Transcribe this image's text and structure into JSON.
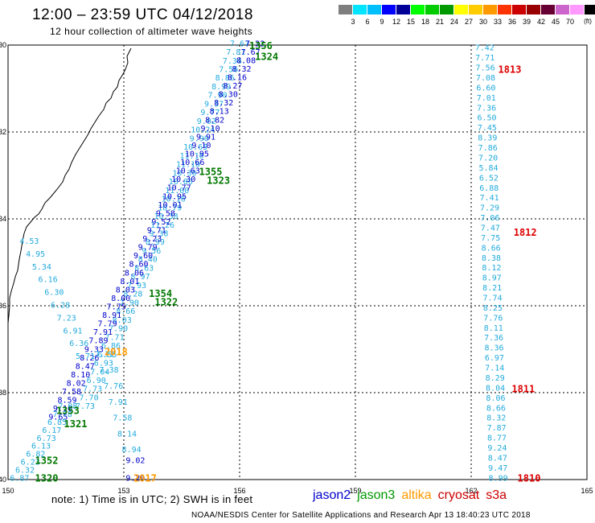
{
  "title": "12:00 – 23:59 UTC 04/12/2018",
  "subtitle": "12 hour collection of altimeter wave heights",
  "colorbar": {
    "unit": "(ft)",
    "colors": [
      "#7f7f7f",
      "#00e5ff",
      "#00bfff",
      "#0000ff",
      "#000099",
      "#00ff00",
      "#00cc00",
      "#009900",
      "#ffff00",
      "#ffcc00",
      "#ff9900",
      "#ff3300",
      "#cc0000",
      "#990000",
      "#660033",
      "#cc66cc",
      "#ff99ff",
      "#000000"
    ],
    "labels": [
      "3",
      "6",
      "9",
      "12",
      "15",
      "18",
      "21",
      "24",
      "27",
      "30",
      "33",
      "36",
      "39",
      "42",
      "45",
      "70"
    ]
  },
  "axes": {
    "lon_ticks": [
      "150",
      "153",
      "156",
      "159",
      "162",
      "165"
    ],
    "lat_ticks": [
      "30",
      "32",
      "34",
      "36",
      "38",
      "40"
    ]
  },
  "note": "note: 1) Time is in UTC; 2) SWH is in feet",
  "legend": [
    {
      "name": "jason2",
      "color": "#0000cc"
    },
    {
      "name": "jason3",
      "color": "#009900"
    },
    {
      "name": "altika",
      "color": "#ff9900"
    },
    {
      "name": "cryosat",
      "color": "#cc0000"
    },
    {
      "name": "s3a",
      "color": "#cc0000"
    }
  ],
  "credit": "NOAA/NESDIS Center for Satellite Applications and Research    Apr 13 18:40:23 UTC 2018",
  "colors": {
    "light": "#22aadd",
    "dark": "#0000cc",
    "green": "#007700",
    "orange": "#ff9900",
    "red": "#dd0000"
  },
  "times": [
    {
      "text": "1356",
      "lon": 156.55,
      "lat": 30.0,
      "c": "green"
    },
    {
      "text": "1324",
      "lon": 156.7,
      "lat": 30.25,
      "c": "green"
    },
    {
      "text": "1813",
      "lon": 163.0,
      "lat": 30.55,
      "c": "red"
    },
    {
      "text": "1355",
      "lon": 155.25,
      "lat": 32.9,
      "c": "green"
    },
    {
      "text": "1323",
      "lon": 155.45,
      "lat": 33.1,
      "c": "green"
    },
    {
      "text": "1812",
      "lon": 163.4,
      "lat": 34.3,
      "c": "red"
    },
    {
      "text": "1354",
      "lon": 153.95,
      "lat": 35.7,
      "c": "green"
    },
    {
      "text": "1322",
      "lon": 154.1,
      "lat": 35.9,
      "c": "green"
    },
    {
      "text": "2018",
      "lon": 152.8,
      "lat": 37.05,
      "c": "orange"
    },
    {
      "text": "1811",
      "lon": 163.35,
      "lat": 37.9,
      "c": "red"
    },
    {
      "text": "1353",
      "lon": 151.55,
      "lat": 38.4,
      "c": "green"
    },
    {
      "text": "1321",
      "lon": 151.75,
      "lat": 38.7,
      "c": "green"
    },
    {
      "text": "1352",
      "lon": 151.0,
      "lat": 39.55,
      "c": "green"
    },
    {
      "text": "1320",
      "lon": 151.0,
      "lat": 39.95,
      "c": "green"
    },
    {
      "text": "2017",
      "lon": 153.55,
      "lat": 39.95,
      "c": "orange"
    },
    {
      "text": "1810",
      "lon": 163.5,
      "lat": 39.95,
      "c": "red"
    }
  ],
  "tracks": [
    {
      "c": "light",
      "lon": [
        156.0,
        152.0
      ],
      "lat": [
        29.95,
        38.3
      ],
      "values": [
        "7.67",
        "7.81",
        "7.34",
        "7.56",
        "8.86",
        "8.99",
        "7.90",
        "9.37",
        "9.77",
        "9.02",
        "10.24",
        "9.90",
        "10.65",
        "11.10",
        "11.10",
        "10.30",
        "10.80",
        "11.00",
        "10.16",
        "10.79",
        "10.38",
        "11.26",
        "9.38",
        "8.99",
        "9.56",
        "8.40",
        "8.63",
        "8.97",
        "7.93",
        "8.28",
        "7.90",
        "8.66",
        "8.03",
        "7.90",
        "7.71",
        "6.86",
        "6.55",
        "6.93",
        "7.04",
        "6.90",
        "7.73",
        "7.70",
        "7.73"
      ]
    },
    {
      "c": "dark",
      "lon": [
        156.4,
        151.3
      ],
      "lat": [
        29.95,
        38.55
      ],
      "values": [
        "7.22",
        "7.67",
        "8.08",
        "8.32",
        "8.16",
        "8.27",
        "8.30",
        "8.32",
        "8.13",
        "8.82",
        "9.10",
        "9.91",
        "9.10",
        "10.95",
        "10.66",
        "10.63",
        "10.30",
        "10.77",
        "10.95",
        "10.01",
        "9.58",
        "9.52",
        "9.71",
        "9.23",
        "9.79",
        "9.60",
        "8.60",
        "8.06",
        "8.01",
        "8.03",
        "8.00",
        "7.75",
        "8.91",
        "7.79",
        "7.91",
        "7.89",
        "9.33",
        "8.26",
        "8.47",
        "8.10",
        "8.02",
        "7.58",
        "8.59",
        "9.10",
        "9.65"
      ]
    },
    {
      "c": "light",
      "lon": [
        151.55,
        150.3
      ],
      "lat": [
        38.3,
        39.95
      ],
      "values": [
        "7.08",
        "7.78",
        "6.85",
        "6.17",
        "6.73",
        "6.13",
        "6.82",
        "6.23",
        "6.32",
        "6.87"
      ]
    },
    {
      "c": "light",
      "lon": [
        150.55,
        152.0
      ],
      "lat": [
        34.5,
        37.15
      ],
      "values": [
        "4.53",
        "4.95",
        "5.34",
        "6.16",
        "6.30",
        "6.28",
        "7.23",
        "6.91",
        "6.36",
        "5.71"
      ]
    },
    {
      "c": "light",
      "lon": [
        152.5,
        153.2
      ],
      "lat": [
        37.1,
        39.3
      ],
      "values": [
        "7.11",
        "7.38",
        "7.76",
        "7.91",
        "7.58",
        "8.14",
        "8.94"
      ]
    },
    {
      "c": "dark",
      "lon": [
        153.3,
        153.3
      ],
      "lat": [
        39.55,
        39.95
      ],
      "values": [
        "9.02",
        "9.20"
      ]
    },
    {
      "c": "light",
      "lon": [
        162.35,
        162.7
      ],
      "lat": [
        30.05,
        39.95
      ],
      "values": [
        "7.42",
        "7.71",
        "7.56",
        "7.08",
        "6.60",
        "7.01",
        "7.36",
        "6.50",
        "7.45",
        "8.39",
        "7.86",
        "7.20",
        "5.84",
        "6.52",
        "6.88",
        "7.41",
        "7.29",
        "7.06",
        "7.47",
        "7.75",
        "8.66",
        "8.38",
        "8.12",
        "8.97",
        "8.21",
        "7.74",
        "8.25",
        "7.76",
        "8.11",
        "7.36",
        "8.36",
        "6.97",
        "7.14",
        "8.29",
        "8.04",
        "8.06",
        "8.66",
        "8.32",
        "7.87",
        "8.77",
        "9.24",
        "8.47",
        "9.47",
        "8.99"
      ]
    }
  ]
}
